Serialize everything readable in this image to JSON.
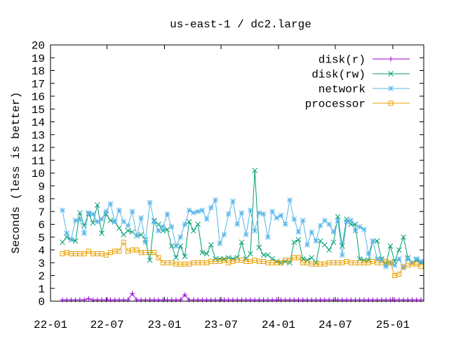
{
  "chart_data": {
    "type": "line",
    "title": "us-east-1 / dc2.large",
    "ylabel": "Seconds (less is better)",
    "xlabel": "",
    "ylim": [
      0,
      20
    ],
    "yticks": [
      "0",
      "1",
      "2",
      "3",
      "4",
      "5",
      "6",
      "7",
      "8",
      "9",
      "10",
      "11",
      "12",
      "13",
      "14",
      "15",
      "16",
      "17",
      "18",
      "19",
      "20"
    ],
    "xlim": [
      "2022-01-01",
      "2025-04-10"
    ],
    "xticks": [
      {
        "label": "22-01",
        "date": "2022-01-01"
      },
      {
        "label": "22-07",
        "date": "2022-07-01"
      },
      {
        "label": "23-01",
        "date": "2023-01-01"
      },
      {
        "label": "23-07",
        "date": "2023-07-01"
      },
      {
        "label": "24-01",
        "date": "2024-01-01"
      },
      {
        "label": "24-07",
        "date": "2024-07-01"
      },
      {
        "label": "25-01",
        "date": "2025-01-01"
      }
    ],
    "legend_position": "top-right",
    "grid": false,
    "x": [
      "2022-02-08",
      "2022-02-22",
      "2022-03-08",
      "2022-03-22",
      "2022-04-05",
      "2022-04-19",
      "2022-05-03",
      "2022-05-17",
      "2022-05-31",
      "2022-06-14",
      "2022-06-28",
      "2022-07-12",
      "2022-07-26",
      "2022-08-09",
      "2022-08-23",
      "2022-09-06",
      "2022-09-20",
      "2022-10-04",
      "2022-10-18",
      "2022-11-01",
      "2022-11-15",
      "2022-11-29",
      "2022-12-13",
      "2022-12-27",
      "2023-01-10",
      "2023-01-24",
      "2023-02-07",
      "2023-02-21",
      "2023-03-07",
      "2023-03-21",
      "2023-04-04",
      "2023-04-18",
      "2023-05-02",
      "2023-05-16",
      "2023-05-30",
      "2023-06-13",
      "2023-06-27",
      "2023-07-11",
      "2023-07-25",
      "2023-08-08",
      "2023-08-22",
      "2023-09-05",
      "2023-09-19",
      "2023-10-03",
      "2023-10-17",
      "2023-10-31",
      "2023-11-14",
      "2023-11-28",
      "2023-12-12",
      "2023-12-26",
      "2024-01-09",
      "2024-01-23",
      "2024-02-06",
      "2024-02-20",
      "2024-03-05",
      "2024-03-19",
      "2024-04-02",
      "2024-04-16",
      "2024-04-30",
      "2024-05-14",
      "2024-05-28",
      "2024-06-11",
      "2024-06-25",
      "2024-07-09",
      "2024-07-23",
      "2024-08-06",
      "2024-08-20",
      "2024-09-03",
      "2024-09-17",
      "2024-10-01",
      "2024-10-15",
      "2024-10-29",
      "2024-11-12",
      "2024-11-26",
      "2024-12-10",
      "2024-12-24",
      "2025-01-07",
      "2025-01-21",
      "2025-02-04",
      "2025-02-18",
      "2025-03-04",
      "2025-03-18",
      "2025-04-01"
    ],
    "series": [
      {
        "name": "disk(r)",
        "color": "#9400d3",
        "marker": "plus",
        "values": [
          0.1,
          0.1,
          0.1,
          0.1,
          0.1,
          0.1,
          0.2,
          0.1,
          0.1,
          0.1,
          0.1,
          0.1,
          0.1,
          0.1,
          0.1,
          0.1,
          0.6,
          0.1,
          0.1,
          0.1,
          0.1,
          0.1,
          0.1,
          0.1,
          0.1,
          0.1,
          0.1,
          0.1,
          0.5,
          0.1,
          0.1,
          0.1,
          0.1,
          0.1,
          0.1,
          0.1,
          0.1,
          0.1,
          0.1,
          0.1,
          0.1,
          0.1,
          0.1,
          0.1,
          0.1,
          0.1,
          0.1,
          0.1,
          0.1,
          0.1,
          0.1,
          0.1,
          0.1,
          0.1,
          0.1,
          0.1,
          0.1,
          0.1,
          0.1,
          0.1,
          0.1,
          0.1,
          0.1,
          0.1,
          0.1,
          0.1,
          0.1,
          0.1,
          0.1,
          0.1,
          0.1,
          0.1,
          0.1,
          0.1,
          0.1,
          0.1,
          0.1,
          0.1,
          0.1,
          0.1,
          0.1,
          0.1,
          0.1
        ]
      },
      {
        "name": "disk(rw)",
        "color": "#009e73",
        "marker": "cross",
        "values": [
          4.6,
          5.0,
          4.8,
          4.7,
          6.9,
          5.9,
          6.8,
          6.1,
          7.5,
          5.3,
          6.8,
          6.3,
          6.2,
          5.7,
          5.2,
          5.5,
          5.4,
          5.1,
          5.2,
          4.8,
          3.2,
          6.3,
          6.0,
          5.5,
          5.6,
          4.3,
          3.4,
          4.3,
          3.5,
          6.2,
          5.5,
          6.0,
          3.8,
          3.7,
          4.4,
          3.3,
          3.3,
          3.3,
          3.4,
          3.3,
          3.4,
          4.6,
          3.3,
          3.7,
          10.2,
          4.2,
          3.6,
          3.6,
          3.3,
          3.1,
          3.0,
          3.1,
          3.0,
          4.6,
          4.8,
          3.3,
          3.2,
          3.4,
          3.0,
          4.7,
          4.4,
          4.0,
          4.6,
          6.6,
          4.3,
          6.4,
          6.0,
          6.0,
          3.3,
          3.2,
          3.2,
          4.7,
          4.7,
          3.3,
          2.9,
          4.3,
          3.1,
          4.0,
          5.0,
          3.4,
          3.0,
          3.2,
          3.0
        ]
      },
      {
        "name": "network",
        "color": "#56b4e9",
        "marker": "star",
        "values": [
          7.1,
          5.3,
          4.8,
          6.3,
          6.4,
          5.3,
          6.9,
          6.8,
          6.2,
          6.4,
          7.0,
          7.6,
          6.2,
          7.1,
          6.2,
          5.9,
          7.0,
          5.1,
          6.5,
          4.6,
          7.7,
          6.2,
          5.5,
          5.8,
          6.8,
          5.8,
          4.3,
          5.0,
          6.0,
          7.1,
          6.9,
          7.0,
          7.1,
          6.4,
          7.3,
          7.9,
          4.5,
          5.2,
          6.8,
          7.8,
          6.0,
          6.9,
          5.2,
          7.1,
          5.5,
          6.9,
          6.8,
          5.0,
          7.0,
          6.5,
          6.7,
          6.0,
          7.9,
          6.4,
          5.4,
          6.3,
          4.4,
          5.4,
          4.7,
          5.9,
          6.3,
          6.0,
          5.4,
          6.3,
          3.6,
          6.2,
          6.3,
          5.5,
          5.8,
          5.6,
          3.7,
          4.7,
          3.3,
          3.2,
          2.7,
          3.0,
          2.8,
          3.3,
          2.6,
          3.3,
          3.0,
          3.3,
          3.1
        ]
      },
      {
        "name": "processor",
        "color": "#e69f00",
        "marker": "square",
        "values": [
          3.7,
          3.8,
          3.7,
          3.7,
          3.7,
          3.7,
          3.9,
          3.7,
          3.7,
          3.7,
          3.6,
          3.8,
          3.9,
          3.9,
          4.6,
          3.9,
          4.0,
          4.0,
          3.8,
          3.8,
          3.8,
          3.8,
          3.4,
          3.0,
          3.0,
          3.0,
          2.9,
          2.9,
          2.9,
          2.9,
          3.0,
          3.0,
          3.0,
          3.0,
          3.1,
          3.1,
          3.1,
          3.2,
          3.0,
          3.1,
          3.2,
          3.2,
          3.1,
          3.1,
          3.2,
          3.1,
          3.1,
          3.0,
          3.0,
          3.0,
          3.0,
          3.2,
          3.2,
          3.4,
          3.4,
          3.0,
          3.0,
          2.9,
          2.9,
          2.9,
          2.9,
          3.0,
          3.0,
          3.0,
          3.0,
          3.1,
          3.0,
          3.0,
          3.0,
          3.0,
          3.0,
          3.1,
          3.0,
          3.0,
          3.1,
          3.0,
          2.0,
          2.1,
          2.7,
          2.8,
          2.9,
          2.9,
          2.7
        ]
      }
    ]
  }
}
